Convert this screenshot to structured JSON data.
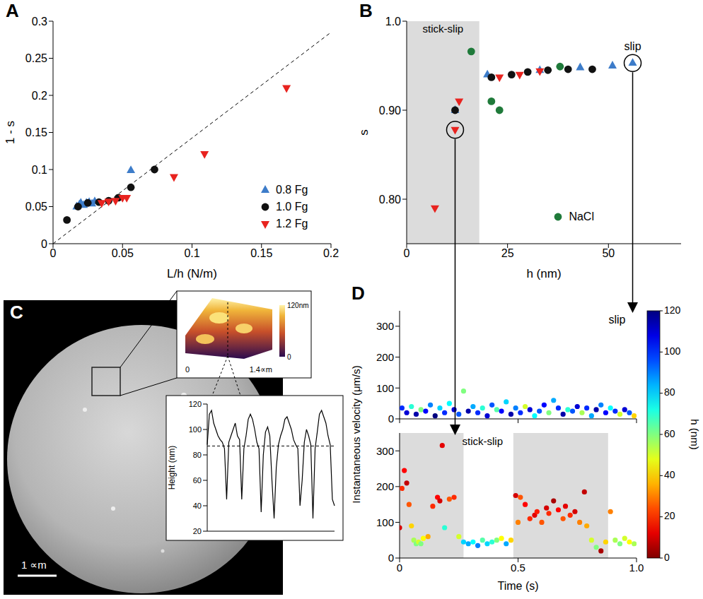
{
  "chart_data": [
    {
      "panel": "A",
      "type": "scatter",
      "x_label": "L/h (N/m)",
      "y_label": "1 - s",
      "xlim": [
        0,
        0.2
      ],
      "xticks": [
        0,
        0.05,
        0.1,
        0.15,
        0.2
      ],
      "ylim": [
        0,
        0.3
      ],
      "yticks": [
        0,
        0.05,
        0.1,
        0.15,
        0.2,
        0.25,
        0.3
      ],
      "legend": "lower right",
      "reference_line": {
        "x": [
          0,
          0.2
        ],
        "y": [
          0,
          0.285
        ],
        "line_style": "dashed"
      },
      "series": [
        {
          "name": "0.8 Fg",
          "color": "#3d7cc9",
          "marker": "triangle-up",
          "x": [
            0.017,
            0.019,
            0.02,
            0.022,
            0.024,
            0.026,
            0.028,
            0.03,
            0.056
          ],
          "values": [
            0.05,
            0.053,
            0.055,
            0.052,
            0.055,
            0.056,
            0.054,
            0.057,
            0.099
          ]
        },
        {
          "name": "1.0 Fg",
          "color": "#111111",
          "marker": "circle",
          "x": [
            0.01,
            0.018,
            0.025,
            0.033,
            0.04,
            0.047,
            0.056,
            0.073
          ],
          "values": [
            0.032,
            0.05,
            0.055,
            0.056,
            0.058,
            0.062,
            0.076,
            0.1
          ]
        },
        {
          "name": "1.2 Fg",
          "color": "#e8231f",
          "marker": "triangle-down",
          "x": [
            0.035,
            0.04,
            0.045,
            0.05,
            0.053,
            0.087,
            0.109,
            0.168
          ],
          "values": [
            0.055,
            0.057,
            0.058,
            0.062,
            0.062,
            0.09,
            0.121,
            0.21
          ]
        }
      ]
    },
    {
      "panel": "B",
      "type": "scatter",
      "x_label": "h (nm)",
      "y_label": "s",
      "xlim": [
        0,
        68
      ],
      "xticks": [
        0,
        25,
        50
      ],
      "ylim": [
        0.75,
        1.0
      ],
      "yticks": [
        {
          "value": 0.8,
          "label": "0.80"
        },
        {
          "value": 0.9,
          "label": "0.90"
        },
        {
          "value": 1.0,
          "label": "1.0"
        }
      ],
      "legend": "lower right",
      "shaded": [
        {
          "x": [
            0,
            18
          ],
          "label": "stick-slip"
        }
      ],
      "circled": [
        {
          "x": 12,
          "y": 0.878
        },
        {
          "x": 56,
          "y": 0.953,
          "label": "slip"
        }
      ],
      "series": [
        {
          "color": "#3d7cc9",
          "marker": "triangle-up",
          "x": [
            12,
            20,
            33,
            43,
            51,
            56
          ],
          "values": [
            0.9,
            0.94,
            0.945,
            0.948,
            0.95,
            0.953
          ]
        },
        {
          "color": "#111111",
          "marker": "circle",
          "x": [
            12,
            21,
            26,
            30,
            35,
            40,
            46
          ],
          "values": [
            0.9,
            0.937,
            0.94,
            0.943,
            0.945,
            0.946,
            0.946
          ]
        },
        {
          "color": "#e8231f",
          "marker": "triangle-down",
          "x": [
            7,
            12,
            13,
            23,
            28,
            33
          ],
          "values": [
            0.79,
            0.878,
            0.91,
            0.937,
            0.94,
            0.944
          ]
        },
        {
          "name": "NaCl",
          "color": "#1f7a3a",
          "marker": "circle",
          "x": [
            16,
            21,
            23,
            38
          ],
          "values": [
            0.966,
            0.91,
            0.9,
            0.949
          ]
        }
      ]
    },
    {
      "panel": "C",
      "type": "line",
      "y_label": "Height (nm)",
      "ylim": [
        20,
        120
      ],
      "yticks": [
        20,
        40,
        60,
        80,
        100,
        120
      ],
      "tick_labels": "y",
      "line_style": "solid",
      "color": "#000000",
      "reference_y": 87,
      "values": [
        88,
        112,
        115,
        105,
        100,
        95,
        92,
        90,
        85,
        45,
        90,
        95,
        100,
        105,
        95,
        92,
        45,
        85,
        95,
        108,
        112,
        108,
        100,
        90,
        85,
        35,
        80,
        98,
        102,
        95,
        60,
        30,
        70,
        88,
        95,
        100,
        108,
        110,
        105,
        100,
        92,
        88,
        85,
        40,
        60,
        90,
        100,
        95,
        88,
        30,
        85,
        98,
        112,
        115,
        110,
        105,
        95,
        88,
        45,
        40
      ],
      "image": {
        "scale_bar_label": "1 ∝m",
        "inset_colorbar": {
          "range": [
            0,
            120
          ],
          "ticks": [
            {
              "value": 0,
              "label": "0"
            },
            {
              "value": 120,
              "label": "120nm"
            }
          ]
        },
        "inset_x_labels": [
          "0",
          "1.4∝m"
        ]
      }
    },
    {
      "panel": "D",
      "type": "scatter",
      "x_label": "Time (s)",
      "y_label": "Instantaneous velocity (μm/s)",
      "xlim": [
        0,
        1
      ],
      "xticks": [
        0,
        0.5,
        {
          "value": 1,
          "label": "1.0"
        }
      ],
      "ylim": [
        0,
        350
      ],
      "yticks": [
        0,
        100,
        200,
        300
      ],
      "colorbar": {
        "label": "h (nm)",
        "range": [
          0,
          120
        ],
        "ticks": [
          0,
          20,
          40,
          60,
          80,
          100,
          120
        ]
      },
      "subplots": [
        {
          "annotation": "slip",
          "tick_labels": "y",
          "x": [
            0.01,
            0.03,
            0.05,
            0.07,
            0.09,
            0.11,
            0.13,
            0.15,
            0.17,
            0.19,
            0.21,
            0.23,
            0.25,
            0.27,
            0.29,
            0.31,
            0.33,
            0.35,
            0.37,
            0.39,
            0.41,
            0.43,
            0.45,
            0.47,
            0.49,
            0.51,
            0.53,
            0.55,
            0.57,
            0.59,
            0.61,
            0.63,
            0.65,
            0.67,
            0.69,
            0.71,
            0.73,
            0.75,
            0.77,
            0.79,
            0.81,
            0.83,
            0.85,
            0.87,
            0.89,
            0.91,
            0.93,
            0.95,
            0.97,
            0.99
          ],
          "values": [
            35,
            20,
            40,
            15,
            30,
            25,
            45,
            10,
            35,
            20,
            50,
            30,
            15,
            90,
            25,
            40,
            20,
            35,
            10,
            45,
            30,
            25,
            55,
            15,
            35,
            20,
            40,
            30,
            10,
            25,
            45,
            20,
            60,
            35,
            15,
            30,
            25,
            40,
            20,
            35,
            10,
            30,
            45,
            20,
            35,
            25,
            15,
            30,
            20,
            10
          ],
          "h": [
            100,
            110,
            70,
            115,
            60,
            105,
            90,
            120,
            80,
            100,
            75,
            110,
            95,
            60,
            115,
            85,
            100,
            70,
            110,
            95,
            65,
            105,
            80,
            115,
            90,
            100,
            50,
            110,
            75,
            95,
            105,
            60,
            85,
            100,
            115,
            70,
            95,
            110,
            55,
            100,
            85,
            115,
            90,
            105,
            75,
            100,
            50,
            110,
            95,
            40
          ]
        },
        {
          "annotation": "stick-slip",
          "shaded": [
            [
              0,
              0.27
            ],
            [
              0.48,
              0.88
            ]
          ],
          "x": [
            0.0,
            0.01,
            0.02,
            0.03,
            0.04,
            0.05,
            0.06,
            0.07,
            0.08,
            0.09,
            0.1,
            0.12,
            0.14,
            0.16,
            0.17,
            0.18,
            0.19,
            0.21,
            0.23,
            0.25,
            0.27,
            0.29,
            0.31,
            0.33,
            0.35,
            0.37,
            0.39,
            0.41,
            0.43,
            0.45,
            0.47,
            0.49,
            0.5,
            0.51,
            0.53,
            0.55,
            0.57,
            0.58,
            0.6,
            0.62,
            0.63,
            0.65,
            0.67,
            0.69,
            0.7,
            0.72,
            0.74,
            0.76,
            0.78,
            0.79,
            0.81,
            0.83,
            0.85,
            0.87,
            0.89,
            0.91,
            0.93,
            0.95,
            0.97,
            0.99
          ],
          "values": [
            85,
            195,
            245,
            210,
            150,
            90,
            50,
            40,
            45,
            40,
            55,
            60,
            145,
            170,
            160,
            315,
            85,
            165,
            170,
            60,
            45,
            40,
            45,
            35,
            50,
            40,
            45,
            50,
            55,
            40,
            50,
            175,
            100,
            170,
            150,
            110,
            120,
            130,
            100,
            140,
            125,
            160,
            135,
            110,
            145,
            120,
            130,
            100,
            185,
            90,
            50,
            30,
            20,
            45,
            130,
            50,
            40,
            55,
            45,
            40
          ],
          "h": [
            10,
            20,
            15,
            8,
            25,
            40,
            55,
            60,
            50,
            60,
            45,
            35,
            20,
            15,
            10,
            12,
            70,
            25,
            20,
            50,
            80,
            85,
            75,
            90,
            65,
            80,
            70,
            60,
            45,
            85,
            40,
            10,
            30,
            25,
            15,
            20,
            12,
            18,
            25,
            10,
            20,
            5,
            15,
            25,
            12,
            20,
            10,
            30,
            8,
            35,
            50,
            60,
            5,
            40,
            30,
            55,
            60,
            50,
            45,
            55
          ]
        }
      ]
    }
  ]
}
